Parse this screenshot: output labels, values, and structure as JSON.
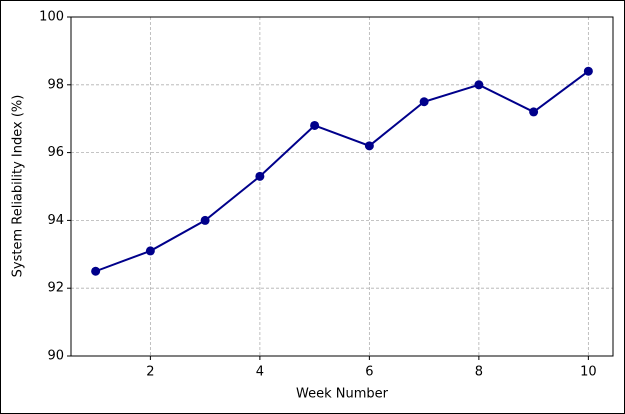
{
  "chart_data": {
    "type": "line",
    "x": [
      1,
      2,
      3,
      4,
      5,
      6,
      7,
      8,
      9,
      10
    ],
    "series": [
      {
        "name": "System Reliability Index",
        "color": "#00008b",
        "values": [
          92.5,
          93.1,
          94.0,
          95.3,
          96.8,
          96.2,
          97.5,
          98.0,
          97.2,
          98.4
        ]
      }
    ],
    "xlabel": "Week Number",
    "ylabel": "System Reliability Index (%)",
    "xlim": [
      0.55,
      10.45
    ],
    "xticks": [
      2,
      4,
      6,
      8,
      10
    ],
    "ylim": [
      90,
      100
    ],
    "yticks": [
      90,
      92,
      94,
      96,
      98,
      100
    ],
    "grid": true,
    "marker": "circle"
  }
}
